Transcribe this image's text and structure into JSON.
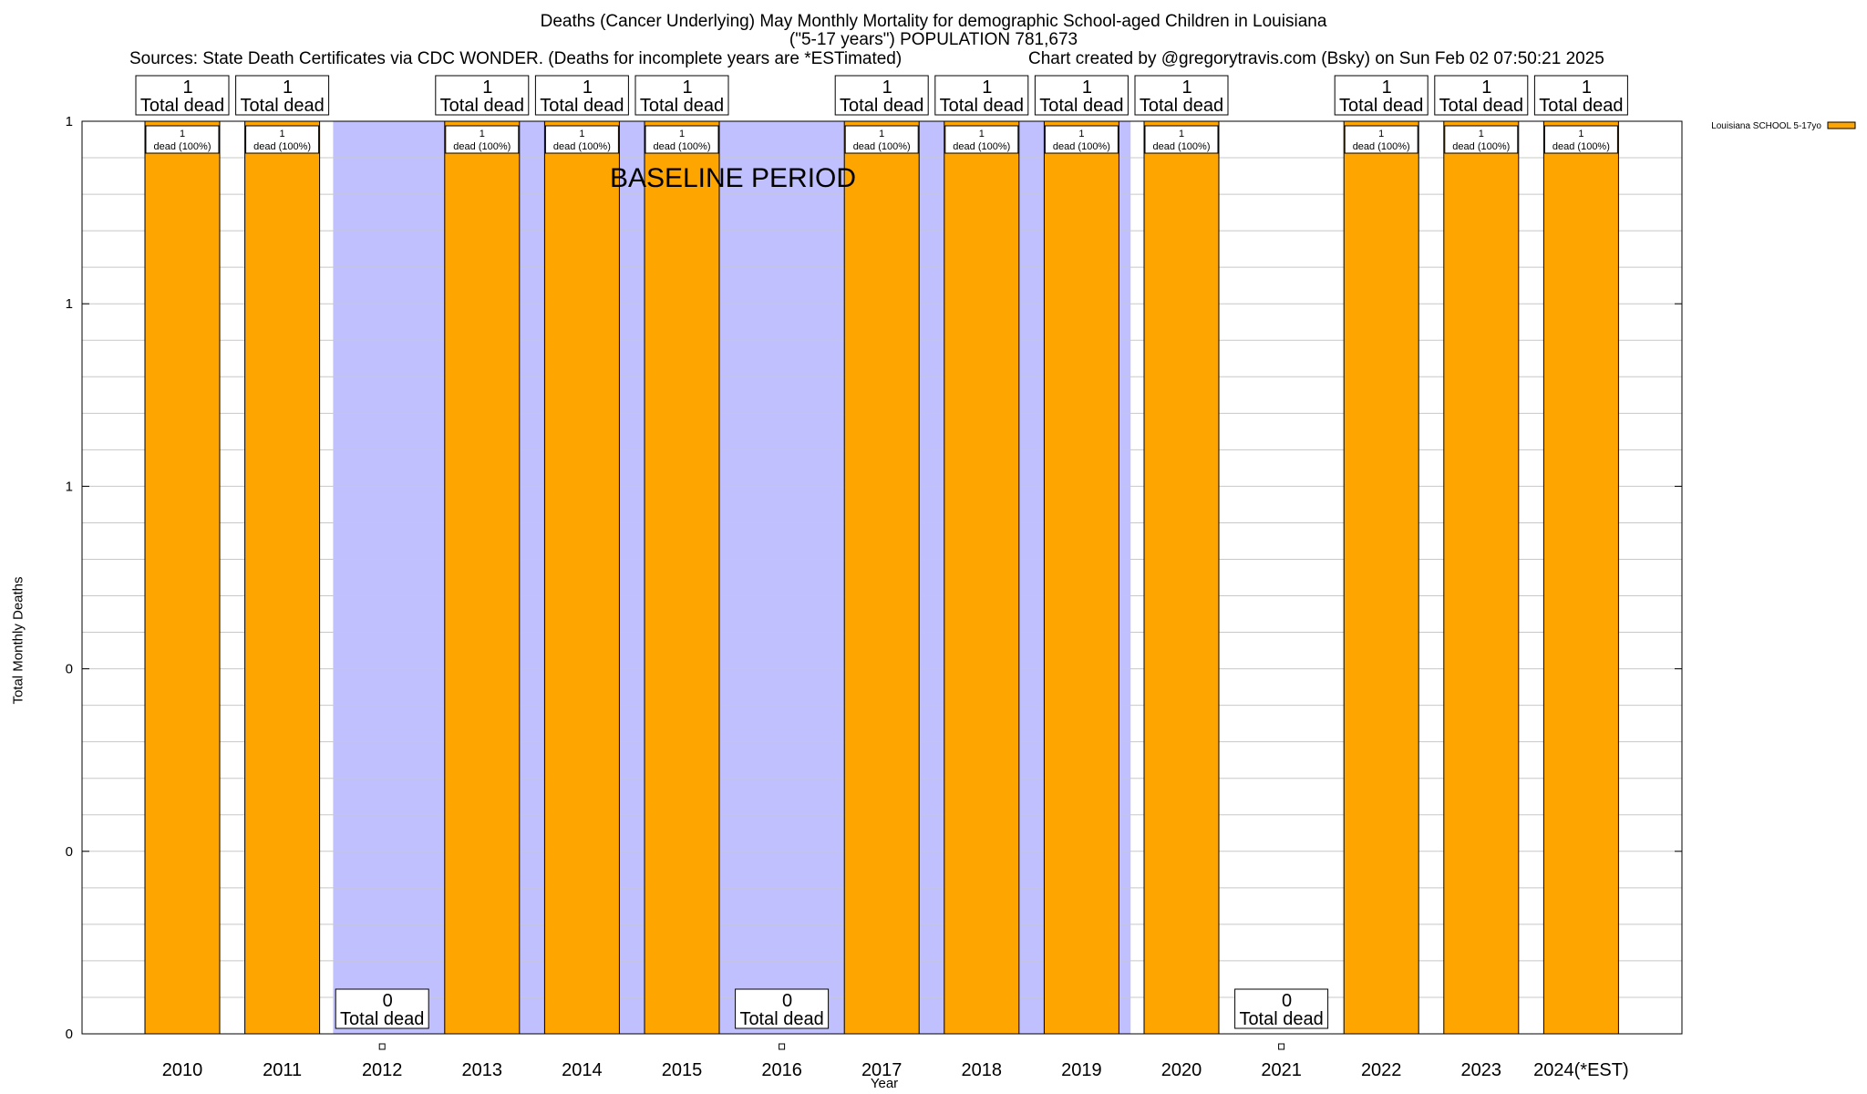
{
  "header": {
    "title": "Deaths (Cancer Underlying) May Monthly Mortality for demographic School-aged Children in Louisiana",
    "subtitle": "(\"5-17 years\") POPULATION 781,673",
    "sources": "Sources: State Death Certificates via CDC WONDER. (Deaths for incomplete years are *ESTimated)",
    "credit": "Chart created by @gregorytravis.com (Bsky) on Sun Feb 02 07:50:21 2025"
  },
  "chart_data": {
    "type": "bar",
    "categories": [
      "2010",
      "2011",
      "2012",
      "2013",
      "2014",
      "2015",
      "2016",
      "2017",
      "2018",
      "2019",
      "2020",
      "2021",
      "2022",
      "2023",
      "2024(*EST)"
    ],
    "series": [
      {
        "name": "Louisiana SCHOOL 5-17yo",
        "values": [
          1,
          1,
          0,
          1,
          1,
          1,
          0,
          1,
          1,
          1,
          1,
          0,
          1,
          1,
          1
        ],
        "color": "#ffa500"
      }
    ],
    "total_labels": [
      "1",
      "1",
      "0",
      "1",
      "1",
      "1",
      "0",
      "1",
      "1",
      "1",
      "1",
      "0",
      "1",
      "1",
      "1"
    ],
    "total_suffix": "Total dead",
    "inner_labels": [
      "1",
      "1",
      "",
      "1",
      "1",
      "1",
      "",
      "1",
      "1",
      "1",
      "1",
      "",
      "1",
      "1",
      "1"
    ],
    "inner_suffix": "dead (100%)",
    "xlabel": "Year",
    "ylabel": "Total Monthly Deaths",
    "ylim": [
      0,
      1
    ],
    "y_tick_labels": [
      "0",
      "0",
      "0",
      "1",
      "1",
      "1"
    ],
    "baseline_label": "BASELINE PERIOD",
    "baseline_years": [
      "2012",
      "2013",
      "2014",
      "2015",
      "2016",
      "2017",
      "2018",
      "2019"
    ],
    "baseline_color": "#c0c0ff",
    "grid": true,
    "legend_position": "top-right"
  }
}
